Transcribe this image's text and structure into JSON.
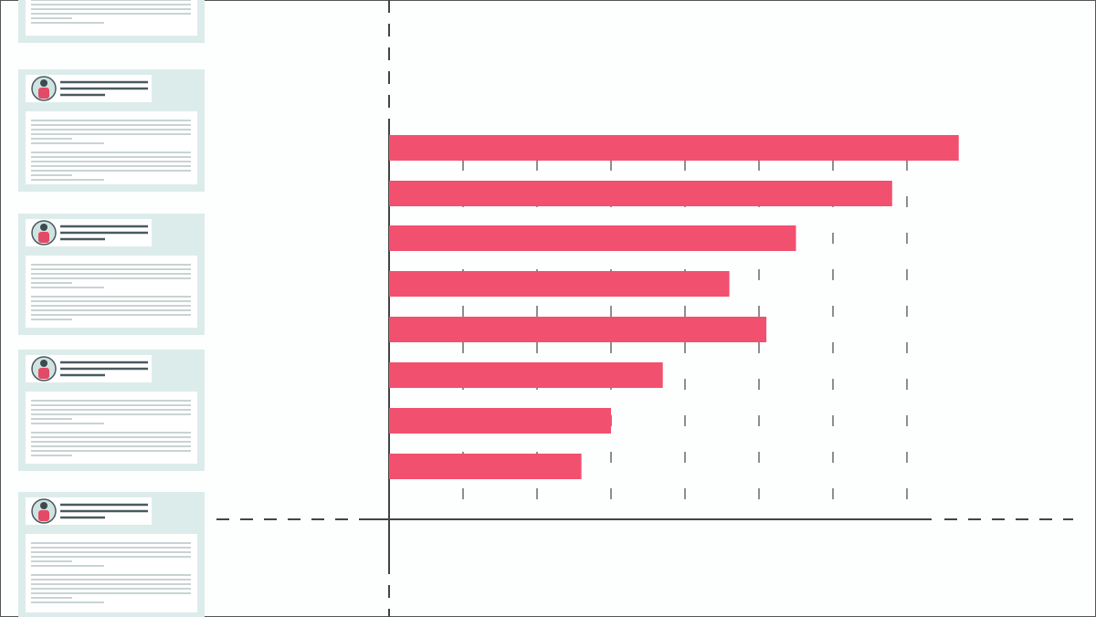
{
  "chart_data": {
    "type": "bar",
    "orientation": "horizontal",
    "categories": [
      null,
      null,
      null,
      null,
      null,
      null,
      null,
      null
    ],
    "values": [
      7.7,
      6.8,
      5.5,
      4.6,
      5.1,
      3.7,
      3.0,
      2.6
    ],
    "color": "#f2506f",
    "xlim": [
      0,
      9
    ],
    "xticks": [
      1,
      2,
      3,
      4,
      5,
      6,
      7
    ],
    "grid": true
  }
}
